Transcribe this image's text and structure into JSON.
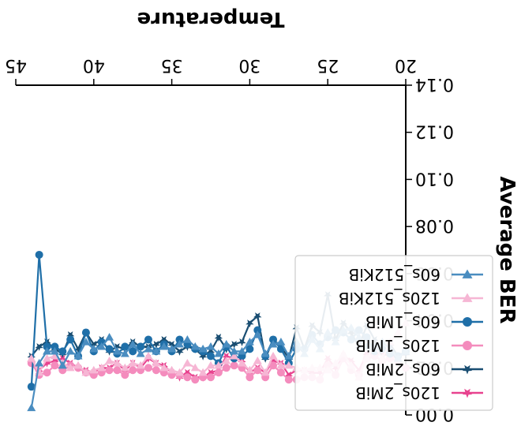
{
  "chart_data": {
    "type": "line",
    "title": "",
    "xlabel": "Temperature",
    "ylabel": "Average BER",
    "xlim": [
      20,
      45
    ],
    "ylim": [
      0.0,
      0.14
    ],
    "y_inverted": true,
    "figure_rotated_180": true,
    "x_ticks": [
      20,
      25,
      30,
      35,
      40,
      45
    ],
    "y_ticks": [
      0.0,
      0.02,
      0.04,
      0.06,
      0.08,
      0.1,
      0.12,
      0.14
    ],
    "x_tick_labels": [
      "20",
      "25",
      "30",
      "35",
      "40",
      "45"
    ],
    "y_tick_labels": [
      "0.00",
      "0.02",
      "0.04",
      "0.06",
      "0.08",
      "0.10",
      "0.12",
      "0.14"
    ],
    "legend_position": "lower-right",
    "x": [
      20,
      20.5,
      21,
      21.5,
      22,
      22.5,
      23,
      23.5,
      24,
      24.5,
      25,
      25.5,
      26,
      26.5,
      27,
      27.5,
      28,
      28.5,
      29,
      29.5,
      30,
      30.5,
      31,
      31.5,
      32,
      32.5,
      33,
      33.5,
      34,
      34.5,
      35,
      35.5,
      36,
      36.5,
      37,
      37.5,
      38,
      38.5,
      39,
      39.5,
      40,
      40.5,
      41,
      41.5,
      42,
      42.5,
      43,
      43.5,
      44
    ],
    "series": [
      {
        "name": "120s_2MiB",
        "color": "#e8438f",
        "marker": "star",
        "values": [
          0.026,
          0.025,
          0.025,
          0.026,
          0.026,
          0.026,
          0.019,
          0.023,
          0.025,
          0.02,
          0.024,
          0.018,
          0.018,
          0.019,
          0.019,
          0.017,
          0.022,
          0.023,
          0.018,
          0.02,
          0.018,
          0.023,
          0.024,
          0.025,
          0.019,
          0.018,
          0.016,
          0.016,
          0.018,
          0.016,
          0.018,
          0.021,
          0.022,
          0.024,
          0.02,
          0.022,
          0.019,
          0.022,
          0.02,
          0.02,
          0.018,
          0.019,
          0.02,
          0.022,
          0.024,
          0.023,
          0.022,
          0.019,
          0.023
        ]
      },
      {
        "name": "60s_2MiB",
        "color": "#1a4e72",
        "marker": "star",
        "values": [
          0.026,
          0.025,
          0.03,
          0.024,
          0.032,
          0.038,
          0.029,
          0.035,
          0.039,
          0.032,
          0.051,
          0.035,
          0.038,
          0.028,
          0.037,
          0.024,
          0.029,
          0.032,
          0.024,
          0.042,
          0.039,
          0.031,
          0.03,
          0.028,
          0.033,
          0.027,
          0.025,
          0.028,
          0.029,
          0.027,
          0.03,
          0.032,
          0.03,
          0.029,
          0.029,
          0.031,
          0.028,
          0.029,
          0.027,
          0.032,
          0.03,
          0.035,
          0.028,
          0.034,
          0.026,
          0.028,
          0.031,
          0.029,
          0.025
        ]
      },
      {
        "name": "120s_1MiB",
        "color": "#f48cbd",
        "marker": "circle",
        "values": [
          0.02,
          0.023,
          0.024,
          0.023,
          0.025,
          0.024,
          0.017,
          0.019,
          0.024,
          0.017,
          0.021,
          0.015,
          0.016,
          0.016,
          0.015,
          0.015,
          0.018,
          0.021,
          0.016,
          0.019,
          0.016,
          0.02,
          0.021,
          0.02,
          0.018,
          0.016,
          0.016,
          0.015,
          0.016,
          0.017,
          0.017,
          0.018,
          0.019,
          0.02,
          0.019,
          0.019,
          0.017,
          0.019,
          0.019,
          0.018,
          0.017,
          0.018,
          0.02,
          0.021,
          0.019,
          0.021,
          0.018,
          0.017,
          0.022
        ]
      },
      {
        "name": "60s_1MiB",
        "color": "#1f6fa8",
        "marker": "circle",
        "values": [
          0.027,
          0.025,
          0.026,
          0.028,
          0.027,
          0.033,
          0.036,
          0.032,
          0.035,
          0.036,
          0.033,
          0.03,
          0.034,
          0.028,
          0.028,
          0.022,
          0.028,
          0.032,
          0.025,
          0.036,
          0.028,
          0.025,
          0.024,
          0.029,
          0.022,
          0.025,
          0.027,
          0.028,
          0.03,
          0.032,
          0.027,
          0.03,
          0.027,
          0.032,
          0.029,
          0.027,
          0.029,
          0.026,
          0.028,
          0.031,
          0.027,
          0.035,
          0.025,
          0.032,
          0.027,
          0.029,
          0.029,
          0.068,
          0.012
        ]
      },
      {
        "name": "120s_512KiB",
        "color": "#f6b6d4",
        "marker": "triangle-down",
        "values": [
          0.039,
          0.035,
          0.031,
          0.024,
          0.029,
          0.024,
          0.016,
          0.021,
          0.026,
          0.022,
          0.019,
          0.02,
          0.02,
          0.019,
          0.02,
          0.021,
          0.021,
          0.025,
          0.018,
          0.023,
          0.019,
          0.022,
          0.025,
          0.023,
          0.021,
          0.021,
          0.018,
          0.02,
          0.022,
          0.018,
          0.019,
          0.02,
          0.022,
          0.025,
          0.021,
          0.022,
          0.02,
          0.022,
          0.023,
          0.02,
          0.019,
          0.018,
          0.021,
          0.02,
          0.022,
          0.025,
          0.024,
          0.018,
          0.024
        ]
      },
      {
        "name": "60s_512KiB",
        "color": "#4a8dc0",
        "marker": "triangle-down",
        "values": [
          0.027,
          0.024,
          0.028,
          0.031,
          0.029,
          0.029,
          0.033,
          0.037,
          0.036,
          0.031,
          0.035,
          0.028,
          0.032,
          0.026,
          0.031,
          0.025,
          0.031,
          0.03,
          0.026,
          0.034,
          0.031,
          0.027,
          0.027,
          0.03,
          0.026,
          0.029,
          0.028,
          0.029,
          0.032,
          0.03,
          0.028,
          0.029,
          0.027,
          0.028,
          0.026,
          0.03,
          0.026,
          0.027,
          0.033,
          0.029,
          0.028,
          0.031,
          0.025,
          0.027,
          0.021,
          0.027,
          0.027,
          0.022,
          0.003
        ]
      }
    ]
  }
}
